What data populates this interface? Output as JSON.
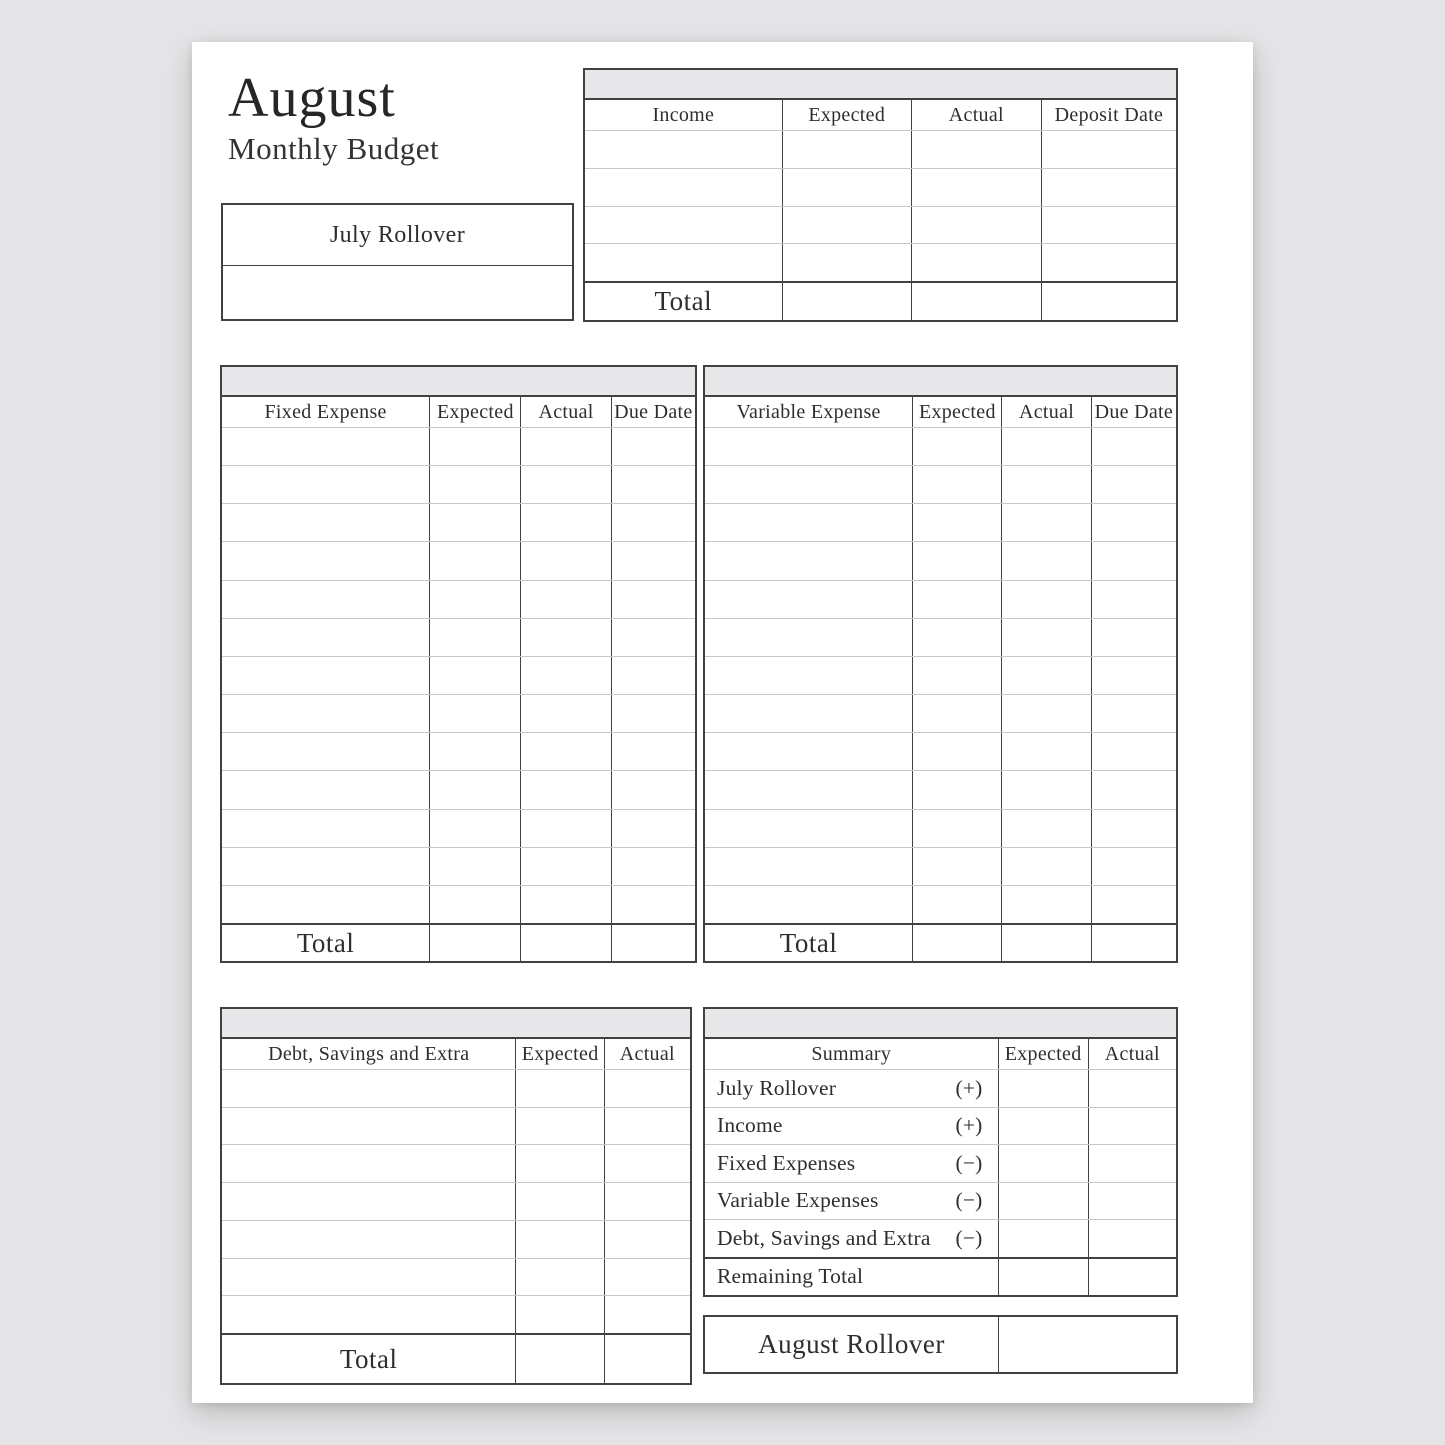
{
  "header": {
    "month": "August",
    "subtitle": "Monthly Budget"
  },
  "july_rollover": {
    "label": "July Rollover"
  },
  "income_table": {
    "headers": [
      "Income",
      "Expected",
      "Actual",
      "Deposit Date"
    ],
    "empty_rows": 4,
    "total_label": "Total"
  },
  "fixed_table": {
    "headers": [
      "Fixed Expense",
      "Expected",
      "Actual",
      "Due Date"
    ],
    "empty_rows": 13,
    "total_label": "Total"
  },
  "variable_table": {
    "headers": [
      "Variable Expense",
      "Expected",
      "Actual",
      "Due Date"
    ],
    "empty_rows": 13,
    "total_label": "Total"
  },
  "debt_table": {
    "headers": [
      "Debt, Savings and Extra",
      "Expected",
      "Actual"
    ],
    "empty_rows": 7,
    "total_label": "Total"
  },
  "summary_table": {
    "headers": [
      "Summary",
      "Expected",
      "Actual"
    ],
    "rows": [
      {
        "label": "July Rollover",
        "sign": "(+)"
      },
      {
        "label": "Income",
        "sign": "(+)"
      },
      {
        "label": "Fixed Expenses",
        "sign": "(−)"
      },
      {
        "label": "Variable Expenses",
        "sign": "(−)"
      },
      {
        "label": "Debt, Savings and Extra",
        "sign": "(−)"
      },
      {
        "label": "Remaining Total",
        "sign": ""
      }
    ]
  },
  "august_rollover": {
    "label": "August Rollover"
  },
  "colors": {
    "canvas_bg": "#e5e4e6",
    "page_bg": "#ffffff",
    "band": "#e8e7e9",
    "border_dark": "#414141",
    "border_light": "#c7c7c7",
    "text": "#2e2e2e"
  }
}
